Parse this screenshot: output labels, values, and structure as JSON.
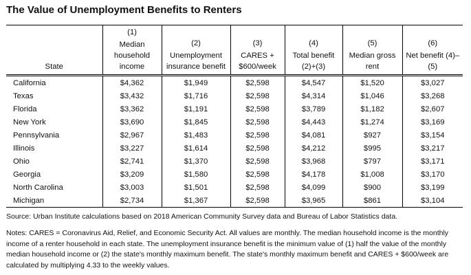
{
  "title": "The Value of Unemployment Benefits to Renters",
  "columns": [
    {
      "num": "",
      "label": "State"
    },
    {
      "num": "(1)",
      "label": "Median household income"
    },
    {
      "num": "(2)",
      "label": "Unemployment insurance benefit"
    },
    {
      "num": "(3)",
      "label": "CARES + $600/week"
    },
    {
      "num": "(4)",
      "label": "Total benefit (2)+(3)"
    },
    {
      "num": "(5)",
      "label": "Median gross rent"
    },
    {
      "num": "(6)",
      "label": "Net benefit (4)–(5)"
    }
  ],
  "rows": [
    [
      "California",
      "$4,362",
      "$1,949",
      "$2,598",
      "$4,547",
      "$1,520",
      "$3,027"
    ],
    [
      "Texas",
      "$3,432",
      "$1,716",
      "$2,598",
      "$4,314",
      "$1,046",
      "$3,268"
    ],
    [
      "Florida",
      "$3,362",
      "$1,191",
      "$2,598",
      "$3,789",
      "$1,182",
      "$2,607"
    ],
    [
      "New York",
      "$3,690",
      "$1,845",
      "$2,598",
      "$4,443",
      "$1,274",
      "$3,169"
    ],
    [
      "Pennsylvania",
      "$2,967",
      "$1,483",
      "$2,598",
      "$4,081",
      "$927",
      "$3,154"
    ],
    [
      "Illinois",
      "$3,227",
      "$1,614",
      "$2,598",
      "$4,212",
      "$995",
      "$3,217"
    ],
    [
      "Ohio",
      "$2,741",
      "$1,370",
      "$2,598",
      "$3,968",
      "$797",
      "$3,171"
    ],
    [
      "Georgia",
      "$3,209",
      "$1,580",
      "$2,598",
      "$4,178",
      "$1,008",
      "$3,170"
    ],
    [
      "North Carolina",
      "$3,003",
      "$1,501",
      "$2,598",
      "$4,099",
      "$900",
      "$3,199"
    ],
    [
      "Michigan",
      "$2,734",
      "$1,367",
      "$2,598",
      "$3,965",
      "$861",
      "$3,104"
    ]
  ],
  "source": "Source: Urban Institute calculations based on 2018 American Community Survey data and Bureau of Labor Statistics data.",
  "notes": "Notes: CARES = Coronavirus Aid, Relief, and Economic Security Act. All values are monthly. The median household income is the monthly income of a renter household in each state. The unemployment insurance benefit is the minimum value of (1) half the value of the monthly median household income or (2) the state's monthly maximum benefit. The state's monthly maximum benefit and CARES + $600/week are calculated by multiplying 4.33 to the weekly values."
}
